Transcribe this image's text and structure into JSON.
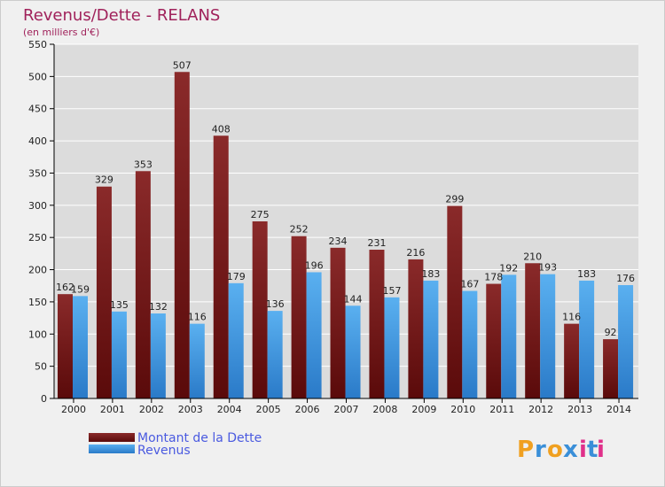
{
  "chart_data": {
    "type": "bar",
    "title": "Revenus/Dette - RELANS",
    "subtitle": "(en milliers d'€)",
    "categories": [
      "2000",
      "2001",
      "2002",
      "2003",
      "2004",
      "2005",
      "2006",
      "2007",
      "2008",
      "2009",
      "2010",
      "2011",
      "2012",
      "2013",
      "2014"
    ],
    "series": [
      {
        "name": "Montant de la Dette",
        "color": "#7a1a1a",
        "values": [
          162,
          329,
          353,
          507,
          408,
          275,
          252,
          234,
          231,
          216,
          299,
          178,
          210,
          116,
          92
        ]
      },
      {
        "name": "Revenus",
        "color": "#3a8fd8",
        "values": [
          159,
          135,
          132,
          116,
          179,
          136,
          196,
          144,
          157,
          183,
          167,
          192,
          193,
          183,
          176
        ]
      }
    ],
    "ylim": [
      0,
      550
    ],
    "yticks": [
      0,
      50,
      100,
      150,
      200,
      250,
      300,
      350,
      400,
      450,
      500,
      550
    ],
    "grid": true,
    "legend_position": "bottom-left"
  },
  "brand": {
    "letters": [
      "P",
      "r",
      "o",
      "x",
      "i",
      "t",
      "i"
    ],
    "colors": [
      "#f0a020",
      "#3a8fd8",
      "#f0a020",
      "#3a8fd8",
      "#e0308a",
      "#3a8fd8",
      "#e0308a"
    ]
  }
}
